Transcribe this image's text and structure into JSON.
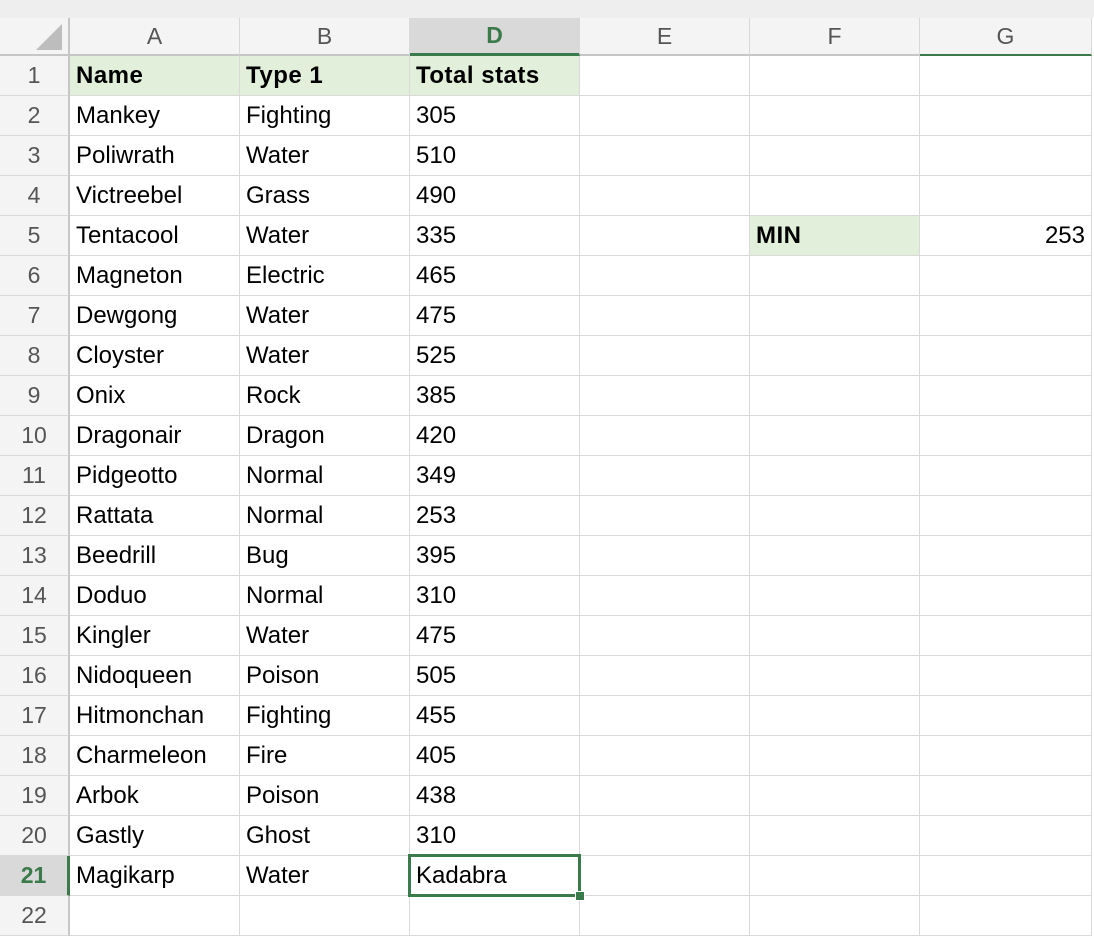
{
  "columns": [
    "A",
    "B",
    "D",
    "E",
    "F",
    "G"
  ],
  "selected_column": "D",
  "selected_row": 21,
  "selected_cell": "D21",
  "row_numbers": [
    1,
    2,
    3,
    4,
    5,
    6,
    7,
    8,
    9,
    10,
    11,
    12,
    13,
    14,
    15,
    16,
    17,
    18,
    19,
    20,
    21,
    22
  ],
  "header_row": {
    "A": "Name",
    "B": "Type 1",
    "D": "Total stats"
  },
  "rows": [
    [
      "Mankey",
      "Fighting",
      "305"
    ],
    [
      "Poliwrath",
      "Water",
      "510"
    ],
    [
      "Victreebel",
      "Grass",
      "490"
    ],
    [
      "Tentacool",
      "Water",
      "335"
    ],
    [
      "Magneton",
      "Electric",
      "465"
    ],
    [
      "Dewgong",
      "Water",
      "475"
    ],
    [
      "Cloyster",
      "Water",
      "525"
    ],
    [
      "Onix",
      "Rock",
      "385"
    ],
    [
      "Dragonair",
      "Dragon",
      "420"
    ],
    [
      "Pidgeotto",
      "Normal",
      "349"
    ],
    [
      "Rattata",
      "Normal",
      "253"
    ],
    [
      "Beedrill",
      "Bug",
      "395"
    ],
    [
      "Doduo",
      "Normal",
      "310"
    ],
    [
      "Kingler",
      "Water",
      "475"
    ],
    [
      "Nidoqueen",
      "Poison",
      "505"
    ],
    [
      "Hitmonchan",
      "Fighting",
      "455"
    ],
    [
      "Charmeleon",
      "Fire",
      "405"
    ],
    [
      "Arbok",
      "Poison",
      "438"
    ],
    [
      "Gastly",
      "Ghost",
      "310"
    ],
    [
      "Magikarp",
      "Water",
      "Kadabra"
    ]
  ],
  "summary": {
    "label": "MIN",
    "label_cell": "F5",
    "value": "253",
    "value_cell": "G5"
  },
  "colors": {
    "accent": "#3b7a4b",
    "header_fill": "#e2efda",
    "gridline": "#d9d9d9"
  }
}
